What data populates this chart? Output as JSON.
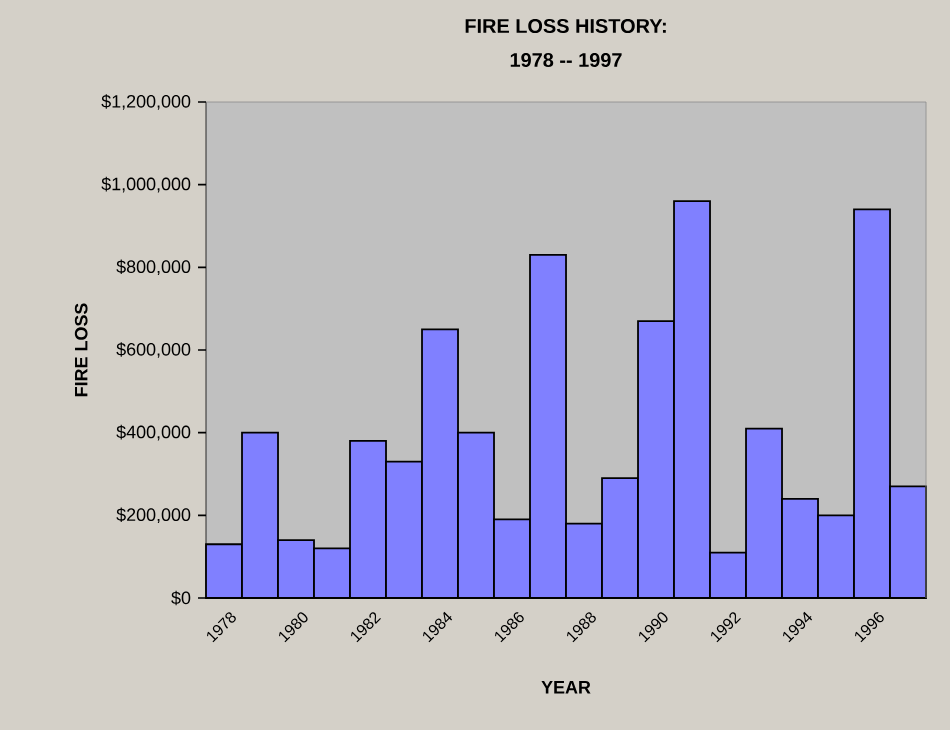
{
  "chart_data": {
    "type": "bar",
    "title": "FIRE LOSS HISTORY:",
    "subtitle": "1978 -- 1997",
    "xlabel": "YEAR",
    "ylabel": "FIRE LOSS",
    "categories": [
      "1978",
      null,
      "1980",
      null,
      "1982",
      null,
      "1984",
      null,
      "1986",
      null,
      "1988",
      null,
      "1990",
      null,
      "1992",
      null,
      "1994",
      null,
      "1996",
      null
    ],
    "values": [
      130000,
      400000,
      140000,
      120000,
      380000,
      330000,
      650000,
      400000,
      190000,
      830000,
      180000,
      290000,
      670000,
      960000,
      110000,
      410000,
      240000,
      200000,
      940000,
      270000
    ],
    "color": "#8080ff",
    "ylim": [
      0,
      1200000
    ],
    "yticks": [
      {
        "value": 0,
        "label": "$0"
      },
      {
        "value": 200000,
        "label": "$200,000"
      },
      {
        "value": 400000,
        "label": "$400,000"
      },
      {
        "value": 600000,
        "label": "$600,000"
      },
      {
        "value": 800000,
        "label": "$800,000"
      },
      {
        "value": 1000000,
        "label": "$1,000,000"
      },
      {
        "value": 1200000,
        "label": "$1,200,000"
      }
    ]
  }
}
